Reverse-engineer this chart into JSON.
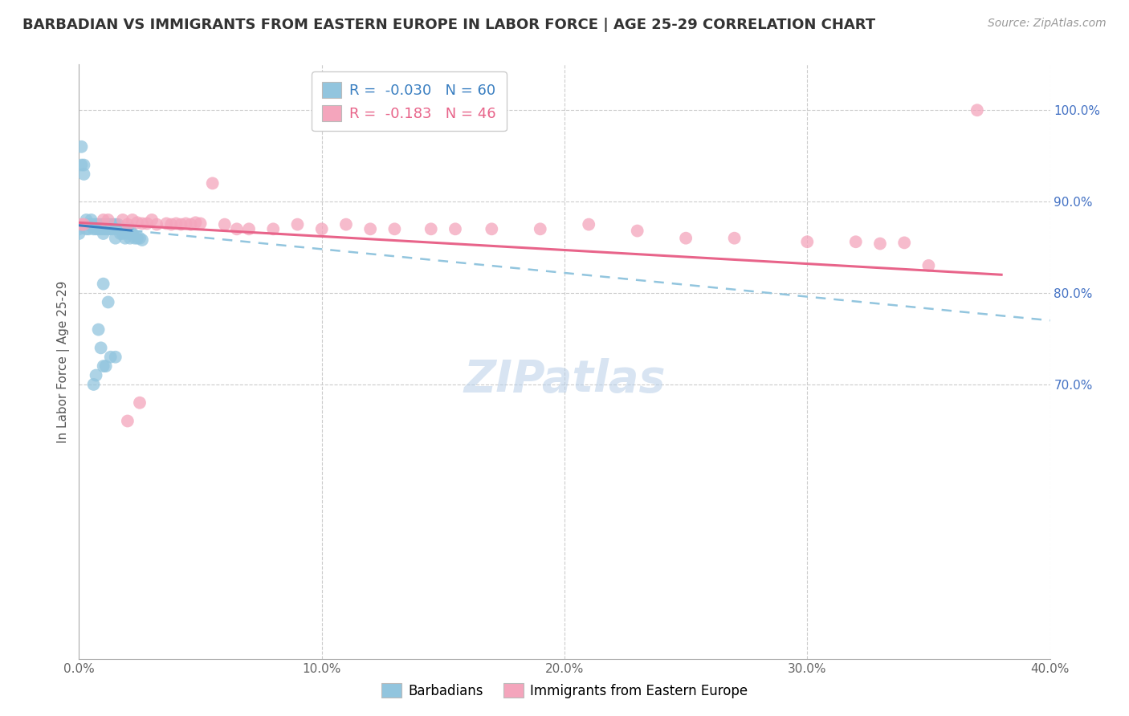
{
  "title": "BARBADIAN VS IMMIGRANTS FROM EASTERN EUROPE IN LABOR FORCE | AGE 25-29 CORRELATION CHART",
  "source_text": "Source: ZipAtlas.com",
  "ylabel": "In Labor Force | Age 25-29",
  "xlim": [
    0.0,
    0.4
  ],
  "ylim": [
    0.4,
    1.05
  ],
  "xtick_labels": [
    "0.0%",
    "",
    "10.0%",
    "",
    "20.0%",
    "",
    "30.0%",
    "",
    "40.0%"
  ],
  "xtick_values": [
    0.0,
    0.05,
    0.1,
    0.15,
    0.2,
    0.25,
    0.3,
    0.35,
    0.4
  ],
  "blue_R": "-0.030",
  "blue_N": "60",
  "pink_R": "-0.183",
  "pink_N": "46",
  "legend_label_blue": "Barbadians",
  "legend_label_pink": "Immigrants from Eastern Europe",
  "blue_color": "#92c5de",
  "pink_color": "#f4a5bc",
  "blue_line_color": "#3a7fc1",
  "pink_line_color": "#e8648a",
  "watermark": "ZIPatlas",
  "blue_scatter_x": [
    0.0,
    0.0,
    0.001,
    0.001,
    0.002,
    0.002,
    0.003,
    0.003,
    0.004,
    0.004,
    0.005,
    0.005,
    0.006,
    0.006,
    0.007,
    0.007,
    0.008,
    0.008,
    0.009,
    0.009,
    0.01,
    0.01,
    0.01,
    0.011,
    0.011,
    0.012,
    0.012,
    0.013,
    0.013,
    0.014,
    0.014,
    0.015,
    0.015,
    0.016,
    0.016,
    0.017,
    0.017,
    0.018,
    0.018,
    0.019,
    0.019,
    0.02,
    0.02,
    0.021,
    0.021,
    0.022,
    0.023,
    0.024,
    0.025,
    0.026,
    0.01,
    0.012,
    0.008,
    0.009,
    0.015,
    0.013,
    0.011,
    0.01,
    0.007,
    0.006
  ],
  "blue_scatter_y": [
    0.87,
    0.865,
    0.96,
    0.94,
    0.94,
    0.93,
    0.88,
    0.87,
    0.875,
    0.87,
    0.88,
    0.875,
    0.87,
    0.875,
    0.875,
    0.87,
    0.875,
    0.87,
    0.875,
    0.87,
    0.875,
    0.87,
    0.865,
    0.875,
    0.87,
    0.875,
    0.87,
    0.875,
    0.87,
    0.875,
    0.87,
    0.875,
    0.86,
    0.875,
    0.87,
    0.87,
    0.865,
    0.87,
    0.865,
    0.87,
    0.86,
    0.87,
    0.865,
    0.87,
    0.86,
    0.865,
    0.86,
    0.86,
    0.86,
    0.858,
    0.81,
    0.79,
    0.76,
    0.74,
    0.73,
    0.73,
    0.72,
    0.72,
    0.71,
    0.7
  ],
  "pink_scatter_x": [
    0.001,
    0.002,
    0.01,
    0.012,
    0.018,
    0.02,
    0.022,
    0.024,
    0.026,
    0.028,
    0.03,
    0.032,
    0.036,
    0.038,
    0.04,
    0.042,
    0.044,
    0.046,
    0.048,
    0.05,
    0.055,
    0.06,
    0.065,
    0.07,
    0.08,
    0.09,
    0.1,
    0.11,
    0.12,
    0.13,
    0.145,
    0.155,
    0.17,
    0.19,
    0.21,
    0.23,
    0.25,
    0.27,
    0.3,
    0.32,
    0.33,
    0.34,
    0.35,
    0.37,
    0.02,
    0.025
  ],
  "pink_scatter_y": [
    0.875,
    0.875,
    0.88,
    0.88,
    0.88,
    0.875,
    0.88,
    0.877,
    0.876,
    0.876,
    0.88,
    0.875,
    0.876,
    0.875,
    0.876,
    0.875,
    0.876,
    0.875,
    0.877,
    0.876,
    0.92,
    0.875,
    0.87,
    0.87,
    0.87,
    0.875,
    0.87,
    0.875,
    0.87,
    0.87,
    0.87,
    0.87,
    0.87,
    0.87,
    0.875,
    0.868,
    0.86,
    0.86,
    0.856,
    0.856,
    0.854,
    0.855,
    0.83,
    1.0,
    0.66,
    0.68
  ]
}
